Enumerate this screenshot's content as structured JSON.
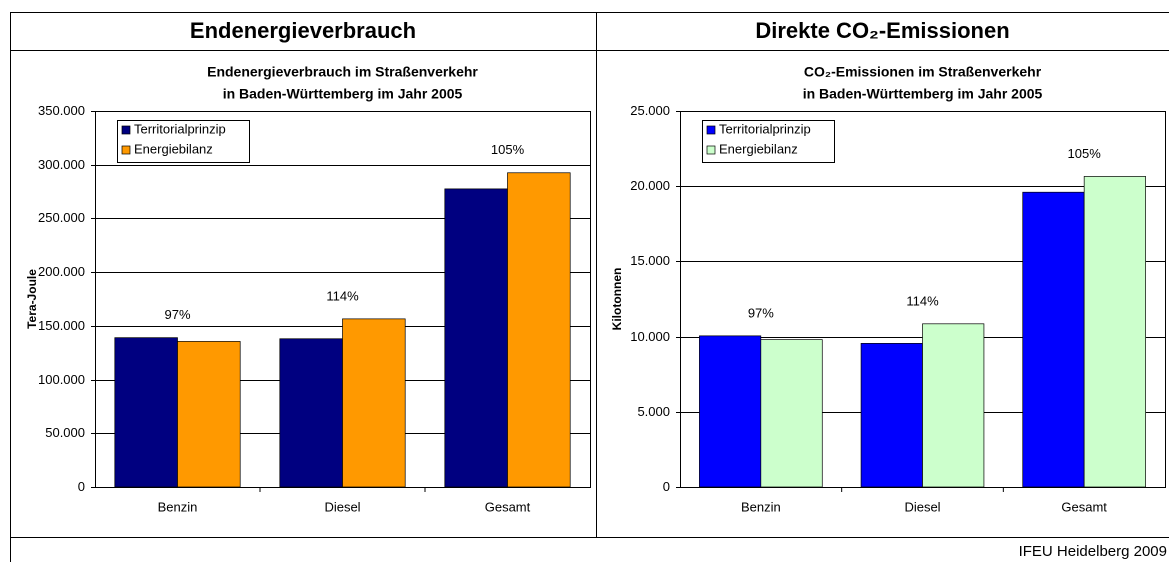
{
  "chart_data": [
    {
      "type": "bar",
      "header": "Endenergieverbrauch",
      "title": [
        "Endenergieverbrauch im Straßenverkehr",
        "in Baden-Württemberg im Jahr 2005"
      ],
      "y_label": "Tera-Joule",
      "categories": [
        "Benzin",
        "Diesel",
        "Gesamt"
      ],
      "series": [
        {
          "name": "Territorialprinzip",
          "color": "#000080",
          "values": [
            139000,
            138000,
            277500
          ]
        },
        {
          "name": "Energiebilanz",
          "color": "#ff9900",
          "values": [
            135500,
            156500,
            292500
          ]
        }
      ],
      "annotations": [
        "97%",
        "114%",
        "105%"
      ],
      "ylim": [
        0,
        350000
      ],
      "yticks": [
        0,
        {
          "value": 50000,
          "label": "50.000"
        },
        {
          "value": 100000,
          "label": "100.000"
        },
        {
          "value": 150000,
          "label": "150.000"
        },
        {
          "value": 200000,
          "label": "200.000"
        },
        {
          "value": 250000,
          "label": "250.000"
        },
        {
          "value": 300000,
          "label": "300.000"
        },
        {
          "value": 350000,
          "label": "350.000"
        }
      ],
      "grid": true,
      "legend": "top-left"
    },
    {
      "type": "bar",
      "header": "Direkte CO₂-Emissionen",
      "title": [
        "CO₂-Emissionen im Straßenverkehr",
        "in Baden-Württemberg im Jahr 2005"
      ],
      "y_label": "Kilotonnen",
      "categories": [
        "Benzin",
        "Diesel",
        "Gesamt"
      ],
      "series": [
        {
          "name": "Territorialprinzip",
          "color": "#0000ff",
          "values": [
            10050,
            9550,
            19600
          ]
        },
        {
          "name": "Energiebilanz",
          "color": "#ccffcc",
          "values": [
            9800,
            10850,
            20650
          ]
        }
      ],
      "annotations": [
        "97%",
        "114%",
        "105%"
      ],
      "ylim": [
        0,
        25000
      ],
      "yticks": [
        0,
        {
          "value": 5000,
          "label": "5.000"
        },
        {
          "value": 10000,
          "label": "10.000"
        },
        {
          "value": 15000,
          "label": "15.000"
        },
        {
          "value": 20000,
          "label": "20.000"
        },
        {
          "value": 25000,
          "label": "25.000"
        }
      ],
      "grid": true,
      "legend": "top-left"
    }
  ],
  "footer": "IFEU Heidelberg 2009"
}
